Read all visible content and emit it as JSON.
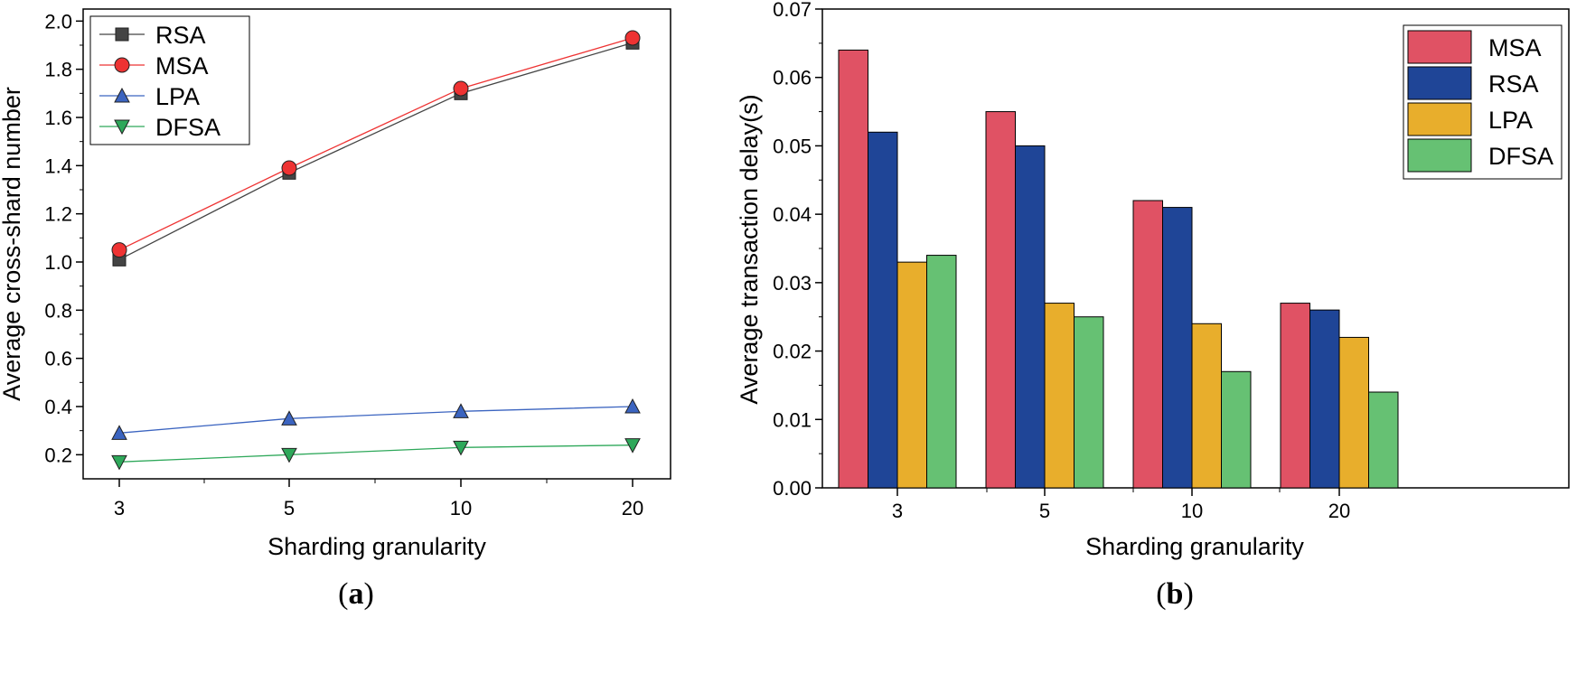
{
  "panels": [
    {
      "label_prefix": "(",
      "label_letter": "a",
      "label_suffix": ")"
    },
    {
      "label_prefix": "(",
      "label_letter": "b",
      "label_suffix": ")"
    }
  ],
  "colors": {
    "RSA_line": "#444444",
    "MSA_line": "#ee3333",
    "LPA_line": "#3b64c0",
    "DFSA_line": "#2ea85a",
    "MSA_bar": "#e05264",
    "RSA_bar": "#1f4597",
    "LPA_bar": "#e8ae2c",
    "DFSA_bar": "#66c173"
  },
  "chart_data": [
    {
      "type": "line",
      "xlabel": "Sharding granularity",
      "ylabel": "Average cross-shard number",
      "categories": [
        "3",
        "5",
        "10",
        "20"
      ],
      "ylim": [
        0.1,
        2.05
      ],
      "yticks": [
        "0.2",
        "0.4",
        "0.6",
        "0.8",
        "1.0",
        "1.2",
        "1.4",
        "1.6",
        "1.8",
        "2.0"
      ],
      "legend_position": "top-left",
      "grid": false,
      "series": [
        {
          "name": "RSA",
          "marker": "square",
          "values": [
            1.01,
            1.37,
            1.7,
            1.91
          ]
        },
        {
          "name": "MSA",
          "marker": "circle",
          "values": [
            1.05,
            1.39,
            1.72,
            1.93
          ]
        },
        {
          "name": "LPA",
          "marker": "triangle-up",
          "values": [
            0.29,
            0.35,
            0.38,
            0.4
          ]
        },
        {
          "name": "DFSA",
          "marker": "triangle-down",
          "values": [
            0.17,
            0.2,
            0.23,
            0.24
          ]
        }
      ]
    },
    {
      "type": "bar",
      "xlabel": "Sharding granularity",
      "ylabel": "Average transaction delay(s)",
      "categories": [
        "3",
        "5",
        "10",
        "20"
      ],
      "ylim": [
        0,
        0.07
      ],
      "yticks": [
        "0.00",
        "0.01",
        "0.02",
        "0.03",
        "0.04",
        "0.05",
        "0.06",
        "0.07"
      ],
      "legend_position": "top-right",
      "grid": false,
      "series": [
        {
          "name": "MSA",
          "values": [
            0.064,
            0.055,
            0.042,
            0.027
          ]
        },
        {
          "name": "RSA",
          "values": [
            0.052,
            0.05,
            0.041,
            0.026
          ]
        },
        {
          "name": "LPA",
          "values": [
            0.033,
            0.027,
            0.024,
            0.022
          ]
        },
        {
          "name": "DFSA",
          "values": [
            0.034,
            0.025,
            0.017,
            0.014
          ]
        }
      ]
    }
  ]
}
